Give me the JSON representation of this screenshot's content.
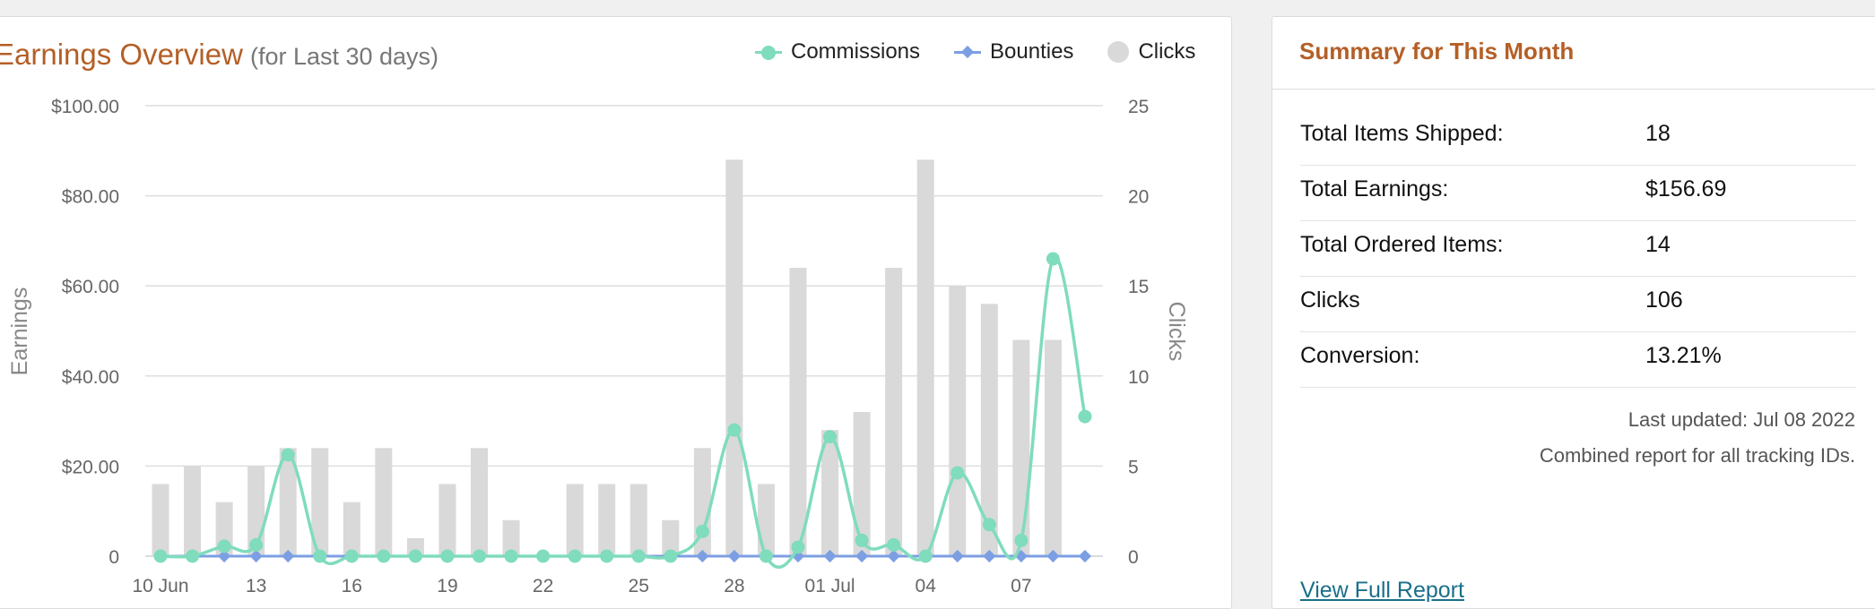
{
  "earnings_panel": {
    "title": "Earnings Overview",
    "subtitle": "(for Last 30 days)"
  },
  "legend": {
    "commissions": "Commissions",
    "bounties": "Bounties",
    "clicks": "Clicks"
  },
  "colors": {
    "accent": "#b45f26",
    "commissions": "#7fdcbd",
    "bounties": "#7c9fe3",
    "clicks": "#d9d9d9",
    "link": "#1a6f8a"
  },
  "chart_data": {
    "type": "bar",
    "xlabel": "",
    "ylabel": "Earnings",
    "y2label": "Clicks",
    "x_tick_labels": [
      "10 Jun",
      "13",
      "16",
      "19",
      "22",
      "25",
      "28",
      "01 Jul",
      "04",
      "07"
    ],
    "y_ticks": [
      "0",
      "$20.00",
      "$40.00",
      "$60.00",
      "$80.00",
      "$100.00"
    ],
    "y2_ticks": [
      "0",
      "5",
      "10",
      "15",
      "20",
      "25"
    ],
    "ylim": [
      0,
      100
    ],
    "y2lim": [
      0,
      25
    ],
    "grid": true,
    "legend_position": "top-right",
    "categories": [
      "10 Jun",
      "11 Jun",
      "12 Jun",
      "13 Jun",
      "14 Jun",
      "15 Jun",
      "16 Jun",
      "17 Jun",
      "18 Jun",
      "19 Jun",
      "20 Jun",
      "21 Jun",
      "22 Jun",
      "23 Jun",
      "24 Jun",
      "25 Jun",
      "26 Jun",
      "27 Jun",
      "28 Jun",
      "29 Jun",
      "30 Jun",
      "01 Jul",
      "02 Jul",
      "03 Jul",
      "04 Jul",
      "05 Jul",
      "06 Jul",
      "07 Jul",
      "08 Jul",
      "09 Jul"
    ],
    "series": [
      {
        "name": "Clicks",
        "type": "bar",
        "axis": "right",
        "values": [
          4,
          5,
          3,
          5,
          6,
          6,
          3,
          6,
          1,
          4,
          6,
          2,
          0,
          4,
          4,
          4,
          2,
          6,
          22,
          4,
          16,
          7,
          8,
          16,
          22,
          15,
          14,
          12,
          12,
          null
        ]
      },
      {
        "name": "Commissions",
        "type": "line",
        "axis": "left",
        "values": [
          0,
          0,
          2.2,
          2.5,
          22.5,
          0,
          0,
          0,
          0,
          0,
          0,
          0,
          0,
          0,
          0,
          0,
          0,
          5.5,
          28,
          0,
          2,
          26.5,
          3.5,
          2.5,
          0,
          18.5,
          7,
          3.5,
          66,
          31
        ]
      },
      {
        "name": "Bounties",
        "type": "line",
        "axis": "left",
        "values": [
          0,
          0,
          0,
          0,
          0,
          0,
          0,
          0,
          0,
          0,
          0,
          0,
          0,
          0,
          0,
          0,
          0,
          0,
          0,
          0,
          0,
          0,
          0,
          0,
          0,
          0,
          0,
          0,
          0,
          0
        ]
      }
    ]
  },
  "summary": {
    "title": "Summary for This Month",
    "rows": [
      {
        "label": "Total Items Shipped:",
        "value": "18"
      },
      {
        "label": "Total Earnings:",
        "value": "$156.69"
      },
      {
        "label": "Total Ordered Items:",
        "value": "14"
      },
      {
        "label": "Clicks",
        "value": "106"
      },
      {
        "label": "Conversion:",
        "value": "13.21%"
      }
    ],
    "last_updated": "Last updated: Jul 08 2022",
    "combined_note": "Combined report for all tracking IDs.",
    "view_full_report": "View Full Report"
  }
}
